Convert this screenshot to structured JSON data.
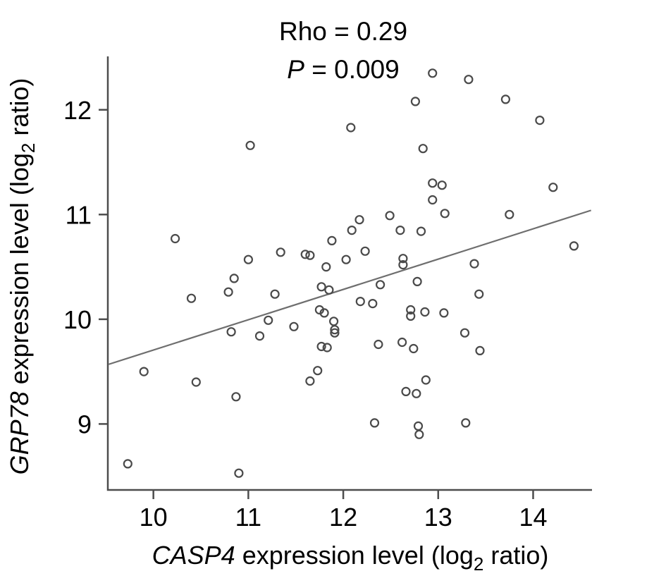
{
  "figure": {
    "title": {
      "line1": "Rho = 0.29",
      "p_italic": "P",
      "p_rest": " = 0.009"
    },
    "x_axis": {
      "label_italic": "CASP4",
      "label_rest": " expression level (log",
      "label_sub": "2",
      "label_tail": " ratio)"
    },
    "y_axis": {
      "label_italic": "GRP78",
      "label_rest": " expression level (log",
      "label_sub": "2",
      "label_tail": " ratio)"
    },
    "colors": {
      "point_stroke": "#4a4a4a",
      "trend_line": "#6e6e6e",
      "axis": "#4d4d4d",
      "text": "#000000",
      "background": "#ffffff"
    }
  },
  "chart_data": {
    "type": "scatter",
    "title": "Rho = 0.29, P = 0.009",
    "xlabel": "CASP4 expression level (log2 ratio)",
    "ylabel": "GRP78 expression level (log2 ratio)",
    "xlim": [
      9.52,
      14.62
    ],
    "ylim": [
      8.37,
      12.51
    ],
    "x_ticks": [
      10,
      11,
      12,
      13,
      14
    ],
    "y_ticks": [
      9,
      10,
      11,
      12
    ],
    "grid": false,
    "legend": false,
    "marker": "open-circle",
    "statistics": {
      "rho": 0.29,
      "p_value": 0.009
    },
    "trendline": {
      "x1": 9.53,
      "y1": 9.57,
      "x2": 14.61,
      "y2": 11.04
    },
    "points": [
      [
        12.94,
        12.35
      ],
      [
        13.32,
        12.29
      ],
      [
        13.71,
        12.1
      ],
      [
        14.07,
        11.9
      ],
      [
        12.76,
        12.08
      ],
      [
        12.08,
        11.83
      ],
      [
        11.02,
        11.66
      ],
      [
        12.84,
        11.63
      ],
      [
        12.94,
        11.3
      ],
      [
        13.04,
        11.28
      ],
      [
        12.94,
        11.14
      ],
      [
        14.21,
        11.26
      ],
      [
        13.07,
        11.01
      ],
      [
        13.75,
        11.0
      ],
      [
        12.17,
        10.95
      ],
      [
        12.49,
        10.99
      ],
      [
        12.09,
        10.85
      ],
      [
        12.6,
        10.85
      ],
      [
        12.82,
        10.84
      ],
      [
        14.43,
        10.7
      ],
      [
        10.23,
        10.77
      ],
      [
        11.0,
        10.57
      ],
      [
        11.34,
        10.64
      ],
      [
        11.6,
        10.62
      ],
      [
        11.65,
        10.61
      ],
      [
        11.82,
        10.5
      ],
      [
        12.23,
        10.65
      ],
      [
        11.88,
        10.75
      ],
      [
        12.03,
        10.57
      ],
      [
        12.63,
        10.58
      ],
      [
        12.63,
        10.52
      ],
      [
        13.38,
        10.53
      ],
      [
        10.85,
        10.39
      ],
      [
        10.79,
        10.26
      ],
      [
        11.28,
        10.24
      ],
      [
        11.77,
        10.31
      ],
      [
        11.85,
        10.28
      ],
      [
        12.39,
        10.33
      ],
      [
        12.78,
        10.36
      ],
      [
        12.18,
        10.17
      ],
      [
        12.31,
        10.15
      ],
      [
        12.71,
        10.09
      ],
      [
        12.71,
        10.03
      ],
      [
        12.86,
        10.07
      ],
      [
        13.06,
        10.06
      ],
      [
        11.21,
        9.99
      ],
      [
        11.48,
        9.93
      ],
      [
        11.75,
        10.09
      ],
      [
        11.8,
        10.06
      ],
      [
        11.9,
        9.98
      ],
      [
        11.91,
        9.9
      ],
      [
        11.91,
        9.87
      ],
      [
        10.82,
        9.88
      ],
      [
        11.12,
        9.84
      ],
      [
        11.77,
        9.74
      ],
      [
        11.83,
        9.73
      ],
      [
        12.37,
        9.76
      ],
      [
        13.28,
        9.87
      ],
      [
        12.62,
        9.78
      ],
      [
        12.74,
        9.72
      ],
      [
        13.44,
        9.7
      ],
      [
        10.4,
        10.2
      ],
      [
        9.9,
        9.5
      ],
      [
        10.45,
        9.4
      ],
      [
        10.87,
        9.26
      ],
      [
        11.73,
        9.51
      ],
      [
        11.65,
        9.41
      ],
      [
        12.79,
        8.98
      ],
      [
        12.8,
        8.9
      ],
      [
        12.33,
        9.01
      ],
      [
        13.29,
        9.01
      ],
      [
        12.87,
        9.42
      ],
      [
        12.66,
        9.31
      ],
      [
        12.77,
        9.29
      ],
      [
        9.73,
        8.62
      ],
      [
        10.9,
        8.53
      ],
      [
        13.43,
        10.24
      ]
    ]
  }
}
